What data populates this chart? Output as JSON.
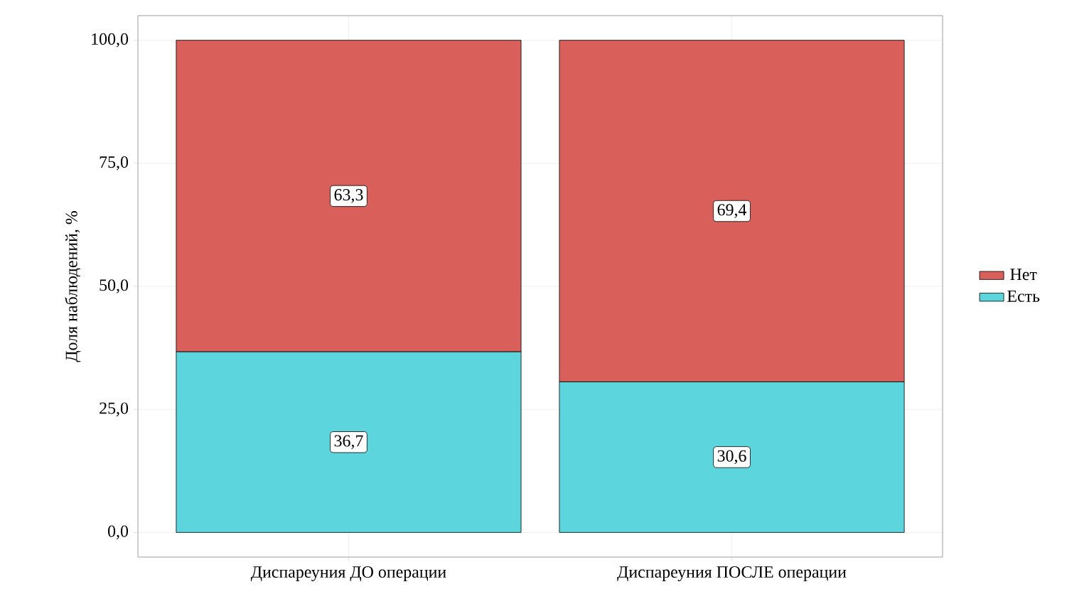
{
  "chart_data": {
    "type": "bar",
    "stacked": true,
    "ylabel": "Доля наблюдений, %",
    "categories": [
      "Диспареуния ДО операции",
      "Диспареуния ПОСЛЕ операции"
    ],
    "series": [
      {
        "name": "Есть",
        "color": "#5cd5dc",
        "values": [
          36.7,
          30.6
        ],
        "value_labels": [
          "36,7",
          "30,6"
        ]
      },
      {
        "name": "Нет",
        "color": "#d9605a",
        "values": [
          63.3,
          69.4
        ],
        "value_labels": [
          "63,3",
          "69,4"
        ]
      }
    ],
    "ylim": [
      -5,
      105
    ],
    "yticks": [
      {
        "value": 0,
        "label": "0,0"
      },
      {
        "value": 25,
        "label": "25,0"
      },
      {
        "value": 50,
        "label": "50,0"
      },
      {
        "value": 75,
        "label": "75,0"
      },
      {
        "value": 100,
        "label": "100,0"
      }
    ],
    "grid": true,
    "legend": "right"
  }
}
